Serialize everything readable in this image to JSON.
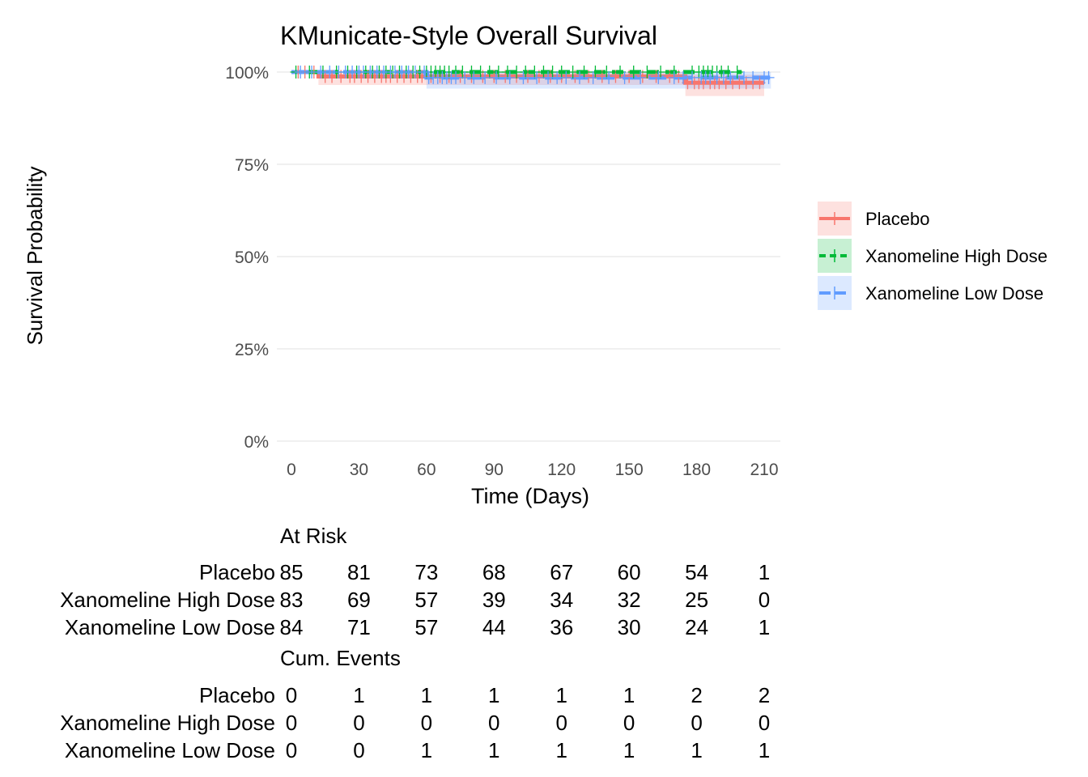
{
  "chart_data": {
    "type": "line",
    "subtype": "kaplan-meier",
    "title": "KMunicate-Style Overall Survival",
    "xlabel": "Time (Days)",
    "ylabel": "Survival Probability",
    "xlim": [
      0,
      210
    ],
    "ylim": [
      0,
      1
    ],
    "x_ticks": [
      0,
      30,
      60,
      90,
      120,
      150,
      180,
      210
    ],
    "y_ticks": [
      0,
      0.25,
      0.5,
      0.75,
      1.0
    ],
    "y_tick_labels": [
      "0%",
      "25%",
      "50%",
      "75%",
      "100%"
    ],
    "grid": true,
    "legend_position": "right",
    "series": [
      {
        "name": "Placebo",
        "color": "#F8766D",
        "linestyle": "solid",
        "steps": [
          [
            0,
            1.0
          ],
          [
            12,
            0.988
          ],
          [
            175,
            0.971
          ],
          [
            210,
            0.971
          ]
        ],
        "ci_lower": [
          [
            0,
            1.0
          ],
          [
            12,
            0.965
          ],
          [
            175,
            0.935
          ],
          [
            210,
            0.935
          ]
        ],
        "ci_upper": [
          [
            0,
            1.0
          ],
          [
            12,
            1.0
          ],
          [
            175,
            0.993
          ],
          [
            210,
            0.993
          ]
        ],
        "censor_times": [
          3,
          6,
          10,
          15,
          18,
          22,
          26,
          28,
          31,
          34,
          37,
          40,
          42,
          44,
          47,
          50,
          53,
          56,
          58,
          62,
          66,
          70,
          75,
          80,
          85,
          90,
          95,
          100,
          105,
          110,
          115,
          120,
          126,
          132,
          138,
          144,
          150,
          156,
          162,
          168,
          172,
          176,
          179,
          181,
          183,
          186,
          188,
          190,
          193,
          196,
          199,
          202,
          205,
          208
        ]
      },
      {
        "name": "Xanomeline High Dose",
        "color": "#00BA38",
        "linestyle": "dashed",
        "steps": [
          [
            0,
            1.0
          ],
          [
            200,
            1.0
          ]
        ],
        "ci_lower": [
          [
            0,
            1.0
          ],
          [
            200,
            1.0
          ]
        ],
        "ci_upper": [
          [
            0,
            1.0
          ],
          [
            200,
            1.0
          ]
        ],
        "censor_times": [
          2,
          8,
          14,
          20,
          25,
          29,
          33,
          36,
          39,
          42,
          45,
          48,
          51,
          54,
          57,
          60,
          62,
          64,
          66,
          68,
          70,
          73,
          76,
          80,
          84,
          88,
          92,
          96,
          100,
          104,
          108,
          112,
          116,
          120,
          125,
          130,
          135,
          140,
          146,
          152,
          158,
          164,
          170,
          178,
          181,
          183,
          185,
          187,
          189,
          191,
          194,
          198
        ]
      },
      {
        "name": "Xanomeline Low Dose",
        "color": "#619CFF",
        "linestyle": "dashed",
        "steps": [
          [
            0,
            1.0
          ],
          [
            60,
            0.985
          ],
          [
            213,
            0.985
          ]
        ],
        "ci_lower": [
          [
            0,
            1.0
          ],
          [
            60,
            0.955
          ],
          [
            213,
            0.955
          ]
        ],
        "ci_upper": [
          [
            0,
            1.0
          ],
          [
            60,
            1.0
          ],
          [
            213,
            1.0
          ]
        ],
        "censor_times": [
          4,
          9,
          13,
          17,
          21,
          24,
          27,
          30,
          32,
          35,
          38,
          41,
          44,
          46,
          49,
          52,
          55,
          59,
          61,
          63,
          65,
          67,
          69,
          71,
          73,
          77,
          81,
          86,
          91,
          97,
          103,
          109,
          114,
          118,
          122,
          128,
          134,
          141,
          148,
          155,
          163,
          170,
          174,
          178,
          182,
          184,
          186,
          189,
          192,
          195,
          201,
          205,
          210,
          212
        ]
      }
    ],
    "risk_table": {
      "title": "At Risk",
      "times": [
        0,
        30,
        60,
        90,
        120,
        150,
        180,
        210
      ],
      "rows": [
        {
          "label": "Placebo",
          "values": [
            "85",
            "81",
            "73",
            "68",
            "67",
            "60",
            "54",
            "1"
          ]
        },
        {
          "label": "Xanomeline High Dose",
          "values": [
            "83",
            "69",
            "57",
            "39",
            "34",
            "32",
            "25",
            "0"
          ]
        },
        {
          "label": "Xanomeline Low Dose",
          "values": [
            "84",
            "71",
            "57",
            "44",
            "36",
            "30",
            "24",
            "1"
          ]
        }
      ]
    },
    "events_table": {
      "title": "Cum. Events",
      "times": [
        0,
        30,
        60,
        90,
        120,
        150,
        180,
        210
      ],
      "rows": [
        {
          "label": "Placebo",
          "values": [
            "0",
            "1",
            "1",
            "1",
            "1",
            "1",
            "2",
            "2"
          ]
        },
        {
          "label": "Xanomeline High Dose",
          "values": [
            "0",
            "0",
            "0",
            "0",
            "0",
            "0",
            "0",
            "0"
          ]
        },
        {
          "label": "Xanomeline Low Dose",
          "values": [
            "0",
            "0",
            "1",
            "1",
            "1",
            "1",
            "1",
            "1"
          ]
        }
      ]
    }
  }
}
